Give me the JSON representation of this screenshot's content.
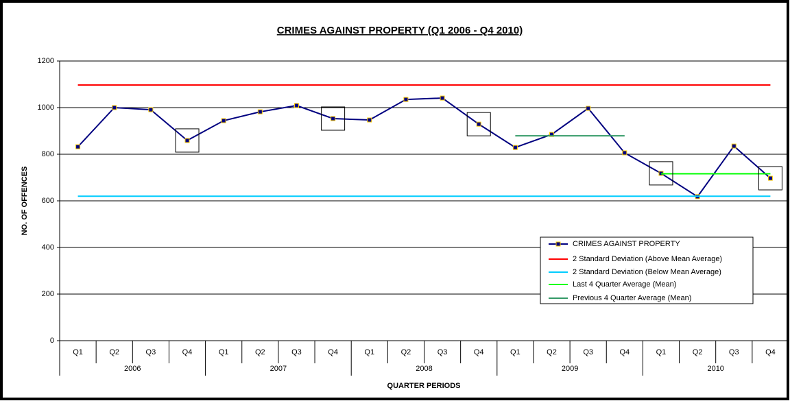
{
  "chart_data": {
    "type": "line",
    "title": "CRIMES AGAINST PROPERTY (Q1 2006 - Q4 2010)",
    "y_label": "NO. OF OFFENCES",
    "x_label": "QUARTER PERIODS",
    "categories": [
      "Q1",
      "Q2",
      "Q3",
      "Q4",
      "Q1",
      "Q2",
      "Q3",
      "Q4",
      "Q1",
      "Q2",
      "Q3",
      "Q4",
      "Q1",
      "Q2",
      "Q3",
      "Q4",
      "Q1",
      "Q2",
      "Q3",
      "Q4"
    ],
    "category_groups": [
      "2006",
      "2007",
      "2008",
      "2009",
      "2010"
    ],
    "ylim": [
      0,
      1200
    ],
    "yticks": [
      0,
      200,
      400,
      600,
      800,
      1000,
      1200
    ],
    "grid": true,
    "highlights": [
      3,
      7,
      11,
      16,
      19
    ],
    "series": [
      {
        "name": "CRIMES AGAINST PROPERTY",
        "color": "#000080",
        "marker": true,
        "values": [
          832,
          1000,
          991,
          859,
          944,
          982,
          1009,
          953,
          947,
          1035,
          1041,
          929,
          829,
          885,
          997,
          806,
          718,
          618,
          835,
          697
        ]
      },
      {
        "name": "2 Standard Deviation (Above Mean Average)",
        "color": "#ff0000",
        "values": [
          1097,
          1097,
          1097,
          1097,
          1097,
          1097,
          1097,
          1097,
          1097,
          1097,
          1097,
          1097,
          1097,
          1097,
          1097,
          1097,
          1097,
          1097,
          1097,
          1097
        ]
      },
      {
        "name": "2 Standard Deviation (Below Mean Average)",
        "color": "#00ccff",
        "values": [
          620,
          620,
          620,
          620,
          620,
          620,
          620,
          620,
          620,
          620,
          620,
          620,
          620,
          620,
          620,
          620,
          620,
          620,
          620,
          620
        ]
      },
      {
        "name": "Last 4 Quarter Average (Mean)",
        "color": "#00ff00",
        "values": [
          null,
          null,
          null,
          null,
          null,
          null,
          null,
          null,
          null,
          null,
          null,
          null,
          null,
          null,
          null,
          null,
          716,
          716,
          716,
          716
        ]
      },
      {
        "name": "Previous 4 Quarter Average (Mean)",
        "color": "#339966",
        "values": [
          null,
          null,
          null,
          null,
          null,
          null,
          null,
          null,
          null,
          null,
          null,
          null,
          879,
          879,
          879,
          879,
          null,
          null,
          null,
          null
        ]
      }
    ]
  }
}
